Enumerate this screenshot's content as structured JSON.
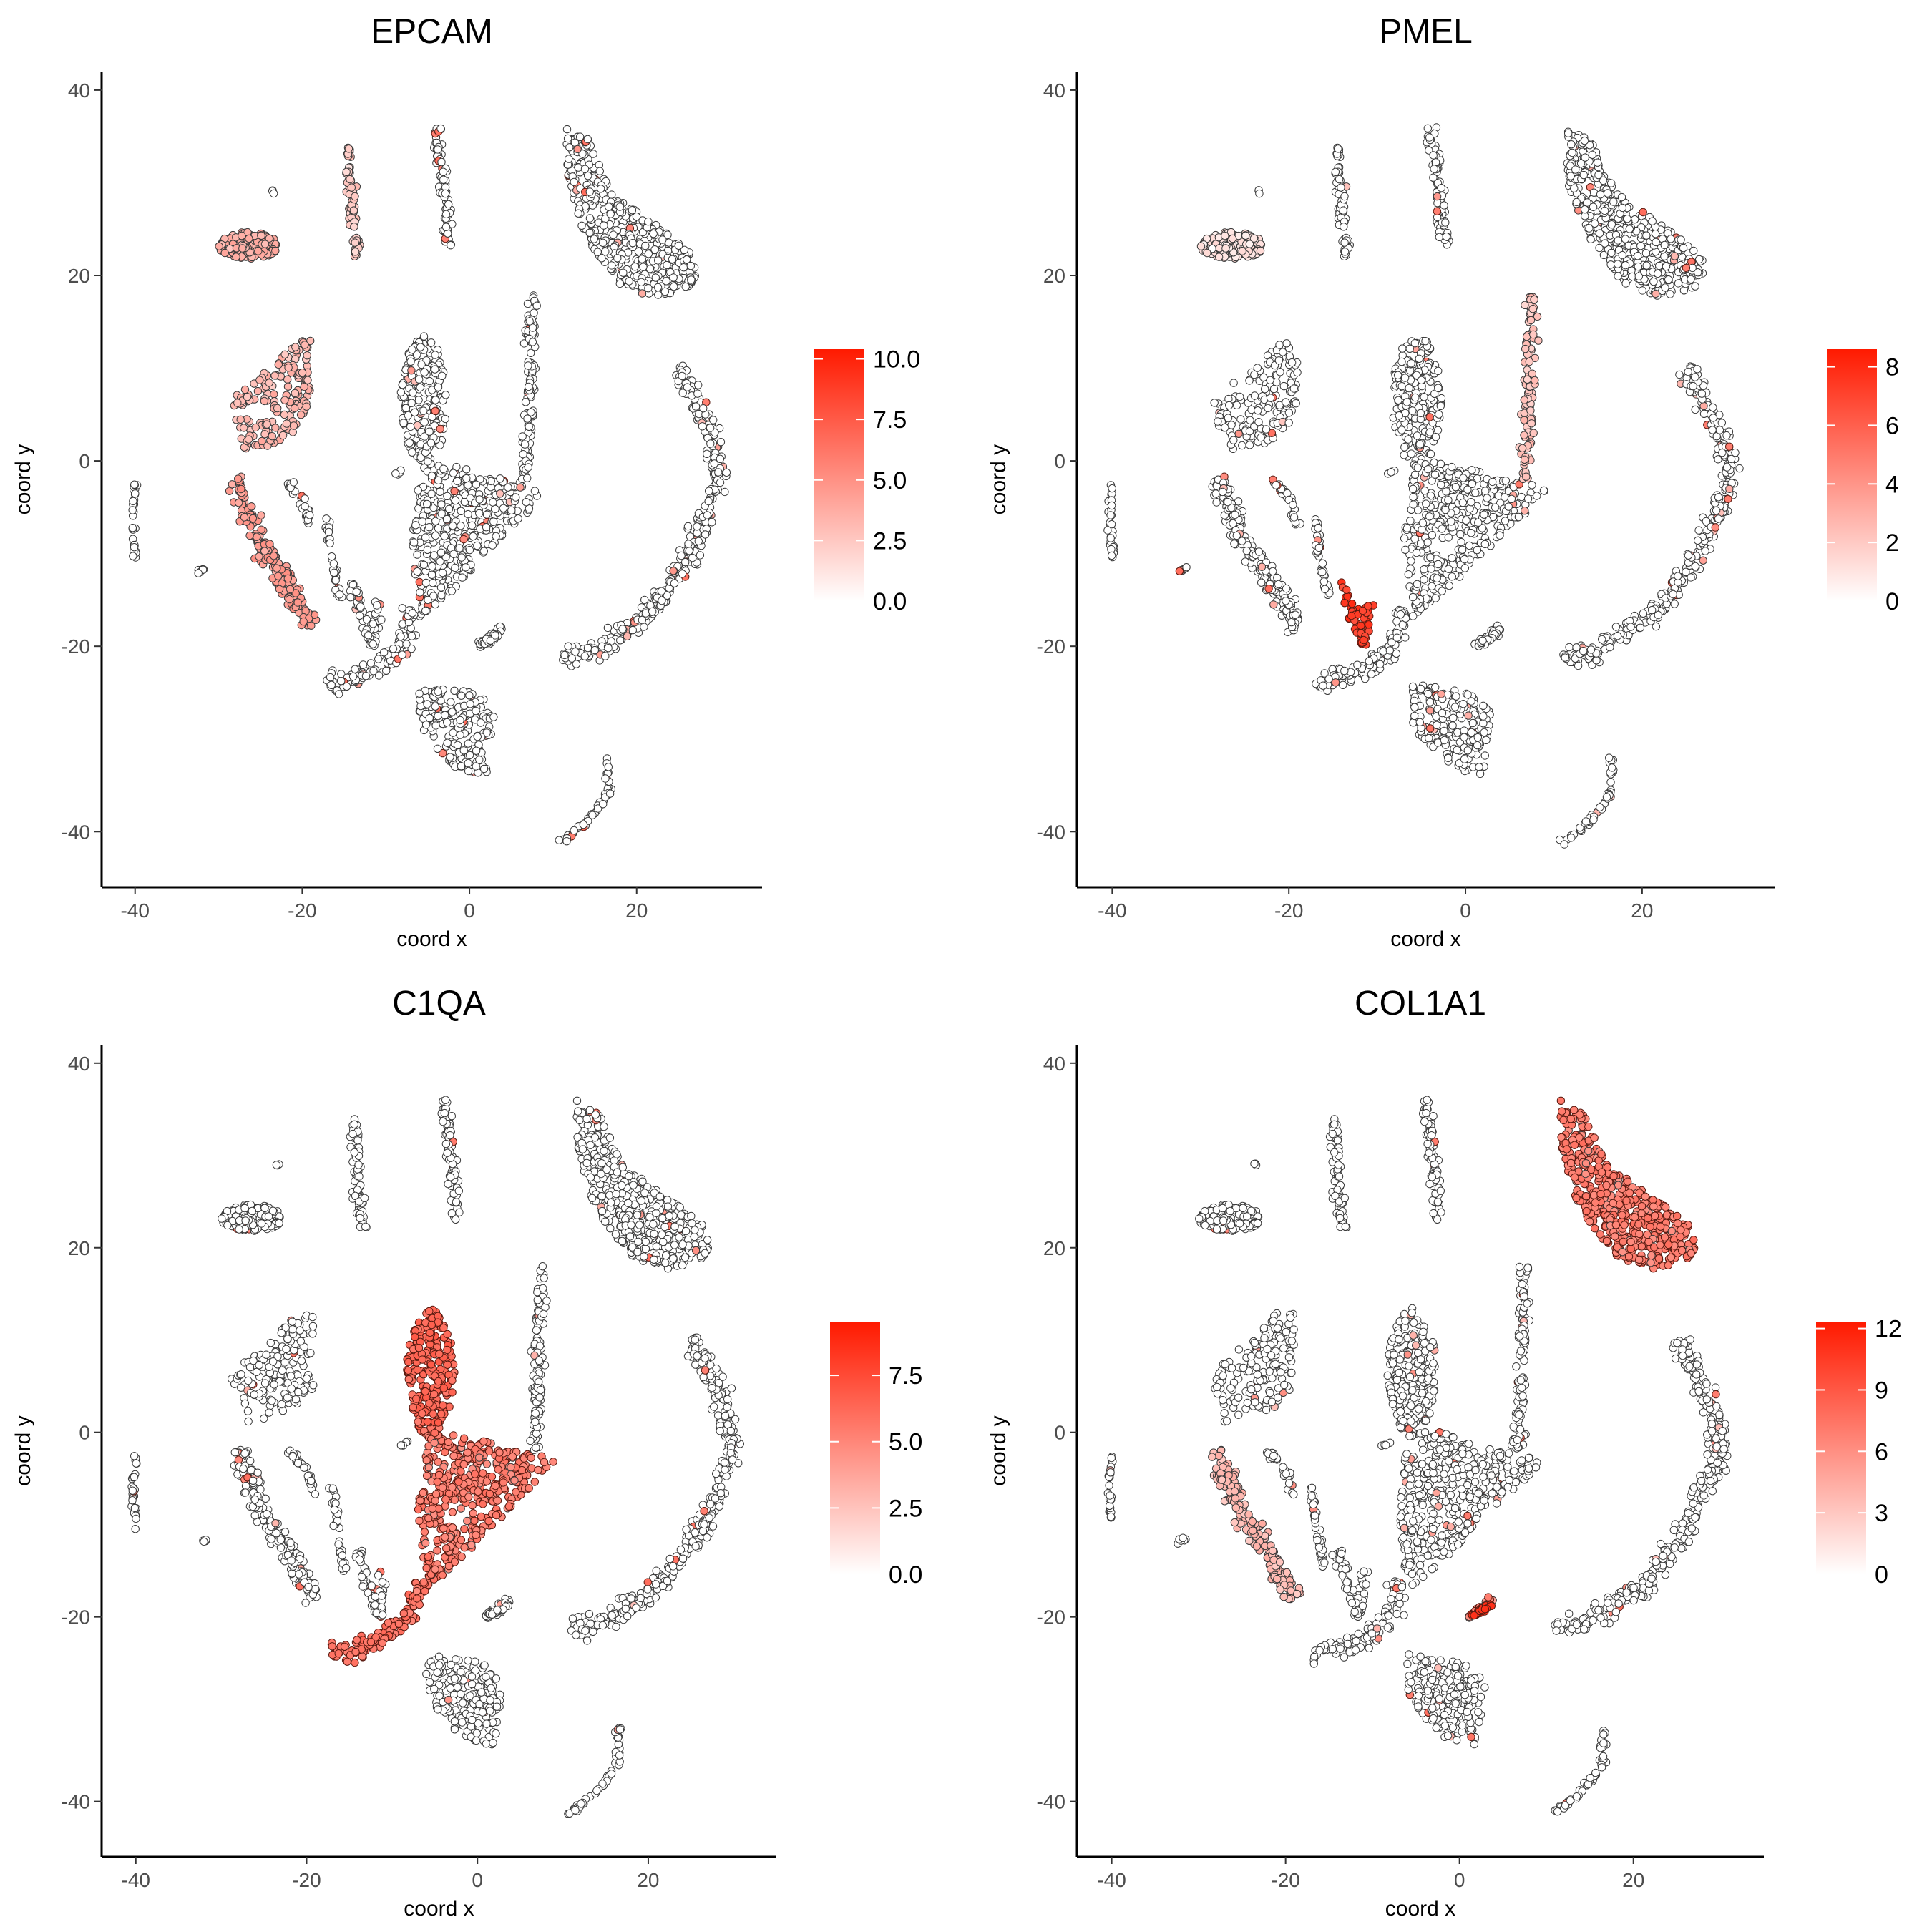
{
  "chart_data": [
    {
      "type": "scatter",
      "title": "EPCAM",
      "xlabel": "coord x",
      "ylabel": "coord y",
      "xticks": [
        -40,
        -20,
        0,
        20
      ],
      "yticks": [
        -40,
        -20,
        0,
        20,
        40
      ],
      "xlim": [
        -44,
        35
      ],
      "ylim": [
        -46,
        42
      ],
      "colorbar": {
        "ticks": [
          "0.0",
          "2.5",
          "5.0",
          "7.5",
          "10.0"
        ],
        "min": 0,
        "max": 10.4,
        "low_color": "#ffffff",
        "high_color": "#ff1a00"
      },
      "highlight": [
        {
          "cluster": "left-top-blob",
          "level": 0.35
        },
        {
          "cluster": "left-upper-arm",
          "level": 0.3
        },
        {
          "cluster": "left-lower-arm",
          "level": 0.42
        },
        {
          "cluster": "thin-strip-a",
          "level": 0.22
        }
      ],
      "grid": false,
      "legend": "right"
    },
    {
      "type": "scatter",
      "title": "PMEL",
      "xlabel": "coord x",
      "ylabel": "coord y",
      "xticks": [
        -40,
        -20,
        0,
        20
      ],
      "yticks": [
        -40,
        -20,
        0,
        20,
        40
      ],
      "xlim": [
        -44,
        35
      ],
      "ylim": [
        -46,
        42
      ],
      "colorbar": {
        "ticks": [
          "0",
          "2",
          "4",
          "6",
          "8"
        ],
        "min": 0,
        "max": 8.6,
        "low_color": "#ffffff",
        "high_color": "#ff1a00"
      },
      "highlight": [
        {
          "cluster": "pmel-hotspot",
          "level": 0.85
        },
        {
          "cluster": "vertical-strip",
          "level": 0.25
        },
        {
          "cluster": "left-top-blob",
          "level": 0.12
        }
      ],
      "grid": false,
      "legend": "right"
    },
    {
      "type": "scatter",
      "title": "C1QA",
      "xlabel": "coord x",
      "ylabel": "coord y",
      "xticks": [
        -40,
        -20,
        0,
        20
      ],
      "yticks": [
        -40,
        -20,
        0,
        20,
        40
      ],
      "xlim": [
        -44,
        35
      ],
      "ylim": [
        -46,
        42
      ],
      "colorbar": {
        "ticks": [
          "0.0",
          "2.5",
          "5.0",
          "7.5"
        ],
        "min": 0,
        "max": 9.5,
        "low_color": "#ffffff",
        "high_color": "#ff1a00"
      },
      "highlight": [
        {
          "cluster": "center-blob",
          "level": 0.65
        },
        {
          "cluster": "center-triangle",
          "level": 0.55
        },
        {
          "cluster": "center-stem",
          "level": 0.6
        }
      ],
      "grid": false,
      "legend": "right"
    },
    {
      "type": "scatter",
      "title": "COL1A1",
      "xlabel": "coord x",
      "ylabel": "coord y",
      "xticks": [
        -40,
        -20,
        0,
        20
      ],
      "yticks": [
        -40,
        -20,
        0,
        20,
        40
      ],
      "xlim": [
        -44,
        35
      ],
      "ylim": [
        -46,
        42
      ],
      "colorbar": {
        "ticks": [
          "0",
          "3",
          "6",
          "9",
          "12"
        ],
        "min": 0,
        "max": 12.3,
        "low_color": "#ffffff",
        "high_color": "#ff1a00"
      },
      "highlight": [
        {
          "cluster": "top-right-wedge",
          "level": 0.55
        },
        {
          "cluster": "left-lower-arm",
          "level": 0.3
        },
        {
          "cluster": "col-hotspot",
          "level": 0.9
        },
        {
          "cluster": "small-island",
          "level": 0.5
        }
      ],
      "grid": false,
      "legend": "right"
    }
  ]
}
